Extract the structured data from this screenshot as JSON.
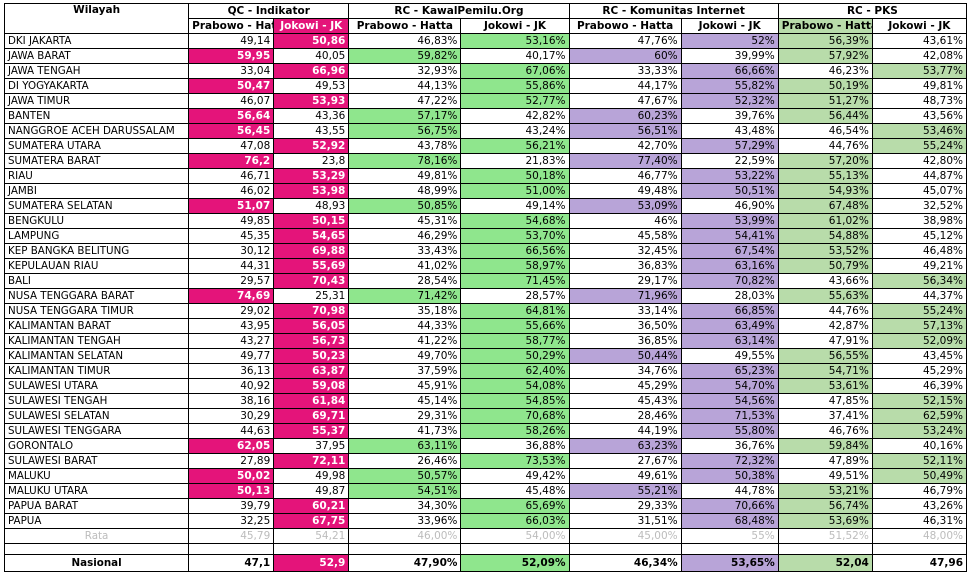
{
  "headers": {
    "wilayah": "Wilayah",
    "groups": [
      "QC - Indikator",
      "RC - KawalPemilu.Org",
      "RC - Komunitas Internet",
      "RC - PKS"
    ],
    "sub": [
      "Prabowo - Hatta",
      "Jokowi - JK",
      "Prabowo - Hatta",
      "Jokowi - JK",
      "Prabowo - Hatta",
      "Jokowi - JK",
      "Prabowo - Hatta",
      "Jokowi - JK"
    ]
  },
  "colors": {
    "pink": "#e4147a",
    "green": "#8fe68d",
    "purple": "#b8a4d8",
    "lightgreen": "#b8dcaa"
  },
  "rows": [
    {
      "name": "DKI JAKARTA",
      "v": [
        "49,14",
        "50,86",
        "46,83%",
        "53,16%",
        "47,76%",
        "52%",
        "56,39%",
        "43,61%"
      ]
    },
    {
      "name": "JAWA BARAT",
      "v": [
        "59,95",
        "40,05",
        "59,82%",
        "40,17%",
        "60%",
        "39,99%",
        "57,92%",
        "42,08%"
      ]
    },
    {
      "name": "JAWA TENGAH",
      "v": [
        "33,04",
        "66,96",
        "32,93%",
        "67,06%",
        "33,33%",
        "66,66%",
        "46,23%",
        "53,77%"
      ]
    },
    {
      "name": "DI YOGYAKARTA",
      "v": [
        "50,47",
        "49,53",
        "44,13%",
        "55,86%",
        "44,17%",
        "55,82%",
        "50,19%",
        "49,81%"
      ]
    },
    {
      "name": "JAWA TIMUR",
      "v": [
        "46,07",
        "53,93",
        "47,22%",
        "52,77%",
        "47,67%",
        "52,32%",
        "51,27%",
        "48,73%"
      ]
    },
    {
      "name": "BANTEN",
      "v": [
        "56,64",
        "43,36",
        "57,17%",
        "42,82%",
        "60,23%",
        "39,76%",
        "56,44%",
        "43,56%"
      ]
    },
    {
      "name": "NANGGROE ACEH DARUSSALAM",
      "v": [
        "56,45",
        "43,55",
        "56,75%",
        "43,24%",
        "56,51%",
        "43,48%",
        "46,54%",
        "53,46%"
      ]
    },
    {
      "name": "SUMATERA UTARA",
      "v": [
        "47,08",
        "52,92",
        "43,78%",
        "56,21%",
        "42,70%",
        "57,29%",
        "44,76%",
        "55,24%"
      ]
    },
    {
      "name": "SUMATERA BARAT",
      "v": [
        "76,2",
        "23,8",
        "78,16%",
        "21,83%",
        "77,40%",
        "22,59%",
        "57,20%",
        "42,80%"
      ]
    },
    {
      "name": "RIAU",
      "v": [
        "46,71",
        "53,29",
        "49,81%",
        "50,18%",
        "46,77%",
        "53,22%",
        "55,13%",
        "44,87%"
      ]
    },
    {
      "name": "JAMBI",
      "v": [
        "46,02",
        "53,98",
        "48,99%",
        "51,00%",
        "49,48%",
        "50,51%",
        "54,93%",
        "45,07%"
      ]
    },
    {
      "name": "SUMATERA SELATAN",
      "v": [
        "51,07",
        "48,93",
        "50,85%",
        "49,14%",
        "53,09%",
        "46,90%",
        "67,48%",
        "32,52%"
      ]
    },
    {
      "name": "BENGKULU",
      "v": [
        "49,85",
        "50,15",
        "45,31%",
        "54,68%",
        "46%",
        "53,99%",
        "61,02%",
        "38,98%"
      ]
    },
    {
      "name": "LAMPUNG",
      "v": [
        "45,35",
        "54,65",
        "46,29%",
        "53,70%",
        "45,58%",
        "54,41%",
        "54,88%",
        "45,12%"
      ]
    },
    {
      "name": "KEP BANGKA BELITUNG",
      "v": [
        "30,12",
        "69,88",
        "33,43%",
        "66,56%",
        "32,45%",
        "67,54%",
        "53,52%",
        "46,48%"
      ]
    },
    {
      "name": "KEPULAUAN RIAU",
      "v": [
        "44,31",
        "55,69",
        "41,02%",
        "58,97%",
        "36,83%",
        "63,16%",
        "50,79%",
        "49,21%"
      ]
    },
    {
      "name": "BALI",
      "v": [
        "29,57",
        "70,43",
        "28,54%",
        "71,45%",
        "29,17%",
        "70,82%",
        "43,66%",
        "56,34%"
      ]
    },
    {
      "name": "NUSA TENGGARA BARAT",
      "v": [
        "74,69",
        "25,31",
        "71,42%",
        "28,57%",
        "71,96%",
        "28,03%",
        "55,63%",
        "44,37%"
      ]
    },
    {
      "name": "NUSA TENGGARA TIMUR",
      "v": [
        "29,02",
        "70,98",
        "35,18%",
        "64,81%",
        "33,14%",
        "66,85%",
        "44,76%",
        "55,24%"
      ]
    },
    {
      "name": "KALIMANTAN BARAT",
      "v": [
        "43,95",
        "56,05",
        "44,33%",
        "55,66%",
        "36,50%",
        "63,49%",
        "42,87%",
        "57,13%"
      ]
    },
    {
      "name": "KALIMANTAN TENGAH",
      "v": [
        "43,27",
        "56,73",
        "41,22%",
        "58,77%",
        "36,85%",
        "63,14%",
        "47,91%",
        "52,09%"
      ]
    },
    {
      "name": "KALIMANTAN SELATAN",
      "v": [
        "49,77",
        "50,23",
        "49,70%",
        "50,29%",
        "50,44%",
        "49,55%",
        "56,55%",
        "43,45%"
      ]
    },
    {
      "name": "KALIMANTAN TIMUR",
      "v": [
        "36,13",
        "63,87",
        "37,59%",
        "62,40%",
        "34,76%",
        "65,23%",
        "54,71%",
        "45,29%"
      ]
    },
    {
      "name": "SULAWESI UTARA",
      "v": [
        "40,92",
        "59,08",
        "45,91%",
        "54,08%",
        "45,29%",
        "54,70%",
        "53,61%",
        "46,39%"
      ]
    },
    {
      "name": "SULAWESI TENGAH",
      "v": [
        "38,16",
        "61,84",
        "45,14%",
        "54,85%",
        "45,43%",
        "54,56%",
        "47,85%",
        "52,15%"
      ]
    },
    {
      "name": "SULAWESI SELATAN",
      "v": [
        "30,29",
        "69,71",
        "29,31%",
        "70,68%",
        "28,46%",
        "71,53%",
        "37,41%",
        "62,59%"
      ]
    },
    {
      "name": "SULAWESI TENGGARA",
      "v": [
        "44,63",
        "55,37",
        "41,73%",
        "58,26%",
        "44,19%",
        "55,80%",
        "46,76%",
        "53,24%"
      ]
    },
    {
      "name": "GORONTALO",
      "v": [
        "62,05",
        "37,95",
        "63,11%",
        "36,88%",
        "63,23%",
        "36,76%",
        "59,84%",
        "40,16%"
      ]
    },
    {
      "name": "SULAWESI BARAT",
      "v": [
        "27,89",
        "72,11",
        "26,46%",
        "73,53%",
        "27,67%",
        "72,32%",
        "47,89%",
        "52,11%"
      ]
    },
    {
      "name": "MALUKU",
      "v": [
        "50,02",
        "49,98",
        "50,57%",
        "49,42%",
        "49,61%",
        "50,38%",
        "49,51%",
        "50,49%"
      ]
    },
    {
      "name": "MALUKU UTARA",
      "v": [
        "50,13",
        "49,87",
        "54,51%",
        "45,48%",
        "55,21%",
        "44,78%",
        "53,21%",
        "46,79%"
      ]
    },
    {
      "name": "PAPUA BARAT",
      "v": [
        "39,79",
        "60,21",
        "34,30%",
        "65,69%",
        "29,33%",
        "70,66%",
        "56,74%",
        "43,26%"
      ]
    },
    {
      "name": "PAPUA",
      "v": [
        "32,25",
        "67,75",
        "33,96%",
        "66,03%",
        "31,51%",
        "68,48%",
        "53,69%",
        "46,31%"
      ]
    }
  ],
  "rata": {
    "name": "Rata",
    "v": [
      "45,79",
      "54,21",
      "46,00%",
      "54,00%",
      "45,00%",
      "55%",
      "51,52%",
      "48,00%"
    ]
  },
  "nasional": {
    "name": "Nasional",
    "v": [
      "47,1",
      "52,9",
      "47,90%",
      "52,09%",
      "46,34%",
      "53,65%",
      "52,04",
      "47,96"
    ]
  }
}
